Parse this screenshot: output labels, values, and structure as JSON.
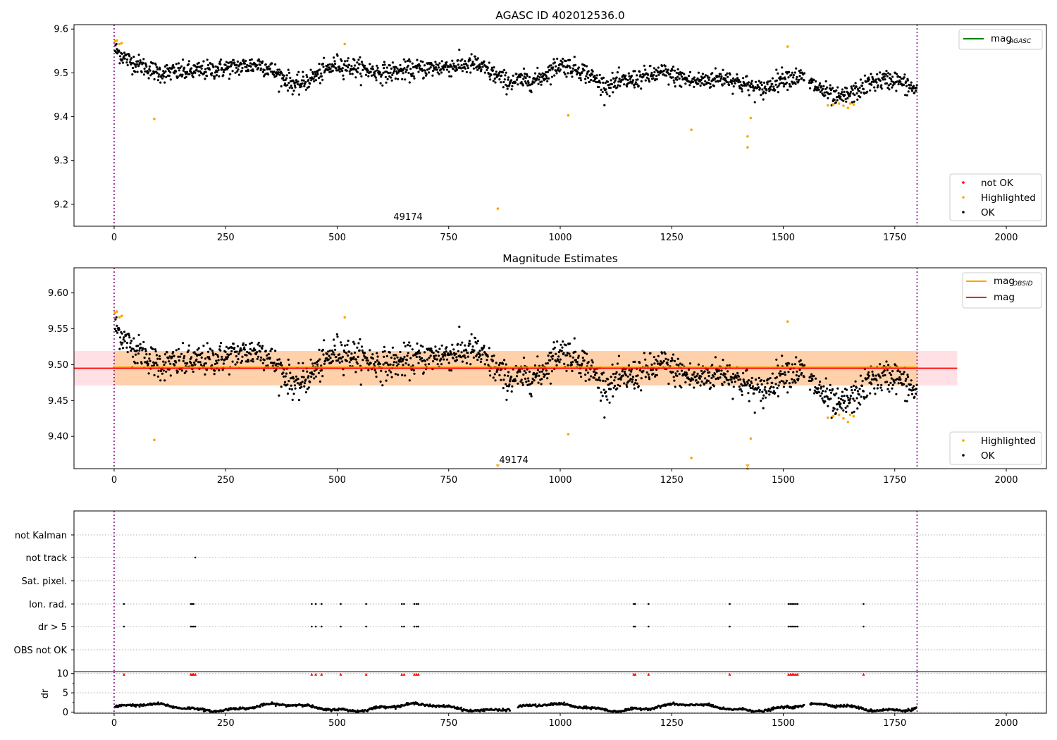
{
  "chart_data": [
    {
      "type": "scatter",
      "title": "AGASC ID 402012536.0",
      "xlim": [
        -90,
        2090
      ],
      "ylim": [
        9.15,
        9.61
      ],
      "xticks": [
        0,
        250,
        500,
        750,
        1000,
        1250,
        1500,
        1750,
        2000
      ],
      "yticks": [
        9.2,
        9.3,
        9.4,
        9.5,
        9.6
      ],
      "ytick_labels": [
        "9.2",
        "9.3",
        "9.4",
        "9.5",
        "9.6"
      ],
      "vlines": [
        0,
        1800
      ],
      "annotation": {
        "text": "49174",
        "x": 860,
        "y": 9.19
      },
      "legend_upper": [
        {
          "label": "mag",
          "sub": "AGASC",
          "color": "#008000"
        }
      ],
      "legend_lower": [
        {
          "label": "not OK",
          "color": "#ff0000"
        },
        {
          "label": "Highlighted",
          "color": "#ffa500"
        },
        {
          "label": "OK",
          "color": "#000000"
        }
      ],
      "series": [
        {
          "name": "OK",
          "color": "#000000",
          "points": "generated trend: 9.555 at x=0 → 9.50 at 100 → 9.52 at 330 → 9.47 at 410 → 9.52 at 500 → 9.50 at 600 → 9.52 at 810 → 9.48 at 880 → 9.52 at 1000 → 9.47 at 1100 → 9.50 at 1230 → 9.48 at 1300 → 9.49 at 1370 → 9.46 at 1450 → 9.49 at 1500 → 9.49 at 1540 → 9.44 at 1620 → 9.48 at 1700 → 9.46 at 1800"
        },
        {
          "name": "Highlighted",
          "color": "#ffa500",
          "points": [
            [
              2,
              9.572
            ],
            [
              6,
              9.574
            ],
            [
              12,
              9.566
            ],
            [
              17,
              9.568
            ],
            [
              90,
              9.395
            ],
            [
              517,
              9.566
            ],
            [
              860,
              9.19
            ],
            [
              1018,
              9.403
            ],
            [
              1294,
              9.37
            ],
            [
              1420,
              9.355
            ],
            [
              1420,
              9.33
            ],
            [
              1427,
              9.397
            ],
            [
              1510,
              9.56
            ],
            [
              1600,
              9.426
            ],
            [
              1612,
              9.428
            ],
            [
              1625,
              9.43
            ],
            [
              1635,
              9.425
            ],
            [
              1645,
              9.42
            ],
            [
              1650,
              9.43
            ],
            [
              1658,
              9.428
            ]
          ]
        }
      ]
    },
    {
      "type": "scatter",
      "title": "Magnitude Estimates",
      "xlim": [
        -90,
        2090
      ],
      "ylim": [
        9.355,
        9.635
      ],
      "xticks": [
        0,
        250,
        500,
        750,
        1000,
        1250,
        1500,
        1750,
        2000
      ],
      "yticks": [
        9.4,
        9.45,
        9.5,
        9.55,
        9.6
      ],
      "ytick_labels": [
        "9.40",
        "9.45",
        "9.50",
        "9.55",
        "9.60"
      ],
      "vlines": [
        0,
        1800
      ],
      "mag_line": 9.495,
      "mag_band": [
        9.471,
        9.519
      ],
      "annotation": {
        "text": "49174",
        "x": 860,
        "y": 9.36
      },
      "legend_upper": [
        {
          "label": "mag",
          "sub": "OBSID",
          "color": "#ffa500"
        },
        {
          "label": "mag",
          "color": "#ff0000"
        }
      ],
      "legend_lower": [
        {
          "label": "Highlighted",
          "color": "#ffa500"
        },
        {
          "label": "OK",
          "color": "#000000"
        }
      ]
    },
    {
      "type": "scatter",
      "xlim": [
        -90,
        2090
      ],
      "flag_rows": [
        "not Kalman",
        "not track",
        "Sat. pixel.",
        "Ion. rad.",
        "dr > 5",
        "OBS not OK"
      ],
      "flag_points": {
        "not track": [
          182
        ],
        "Ion. rad.": [
          22,
          172,
          175,
          178,
          443,
          452,
          465,
          508,
          565,
          645,
          650,
          673,
          678,
          682,
          1165,
          1168,
          1198,
          1380,
          1512,
          1516,
          1520,
          1524,
          1528,
          1532,
          1680
        ],
        "dr > 5": [
          22,
          172,
          175,
          178,
          182,
          443,
          452,
          465,
          508,
          565,
          645,
          650,
          673,
          678,
          682,
          1165,
          1168,
          1198,
          1380,
          1512,
          1516,
          1520,
          1524,
          1528,
          1532,
          1680
        ]
      },
      "dr_axis": {
        "ylabel": "dr",
        "yticks": [
          0,
          5,
          10
        ],
        "ytick_labels": [
          "0",
          "5",
          "10"
        ],
        "ylim": [
          -0.3,
          10.5
        ]
      },
      "dr_clipped_x": [
        22,
        172,
        175,
        178,
        182,
        443,
        452,
        465,
        508,
        565,
        645,
        650,
        673,
        678,
        682,
        1165,
        1168,
        1198,
        1380,
        1512,
        1516,
        1520,
        1524,
        1528,
        1532,
        1680
      ],
      "xticks": [
        0,
        250,
        500,
        750,
        1000,
        1250,
        1500,
        1750,
        2000
      ],
      "vlines": [
        0,
        1800
      ]
    }
  ]
}
